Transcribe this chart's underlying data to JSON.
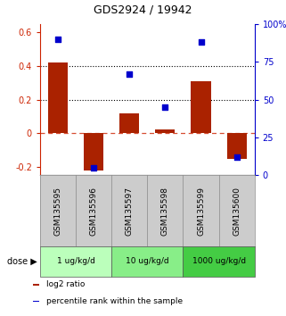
{
  "title": "GDS2924 / 19942",
  "samples": [
    "GSM135595",
    "GSM135596",
    "GSM135597",
    "GSM135598",
    "GSM135599",
    "GSM135600"
  ],
  "log2_ratio": [
    0.42,
    -0.22,
    0.12,
    0.02,
    0.31,
    -0.15
  ],
  "percentile": [
    90,
    5,
    67,
    45,
    88,
    12
  ],
  "bar_color": "#aa2200",
  "dot_color": "#0000cc",
  "ylim_left": [
    -0.25,
    0.65
  ],
  "ylim_right": [
    0,
    100
  ],
  "yticks_left": [
    -0.2,
    0.0,
    0.2,
    0.4,
    0.6
  ],
  "ytick_labels_left": [
    "-0.2",
    "0",
    "0.2",
    "0.4",
    "0.6"
  ],
  "yticks_right": [
    0,
    25,
    50,
    75,
    100
  ],
  "ytick_labels_right": [
    "0",
    "25",
    "50",
    "75",
    "100%"
  ],
  "hlines": [
    0.2,
    0.4
  ],
  "dose_groups": [
    {
      "label": "1 ug/kg/d",
      "indices": [
        0,
        1
      ],
      "color": "#bbffbb"
    },
    {
      "label": "10 ug/kg/d",
      "indices": [
        2,
        3
      ],
      "color": "#88ee88"
    },
    {
      "label": "1000 ug/kg/d",
      "indices": [
        4,
        5
      ],
      "color": "#44cc44"
    }
  ],
  "legend_items": [
    {
      "label": "log2 ratio",
      "color": "#aa2200"
    },
    {
      "label": "percentile rank within the sample",
      "color": "#0000cc"
    }
  ],
  "dose_label": "dose",
  "background_color": "#ffffff",
  "plot_bg_color": "#ffffff",
  "sample_area_color": "#cccccc",
  "bar_width": 0.55
}
